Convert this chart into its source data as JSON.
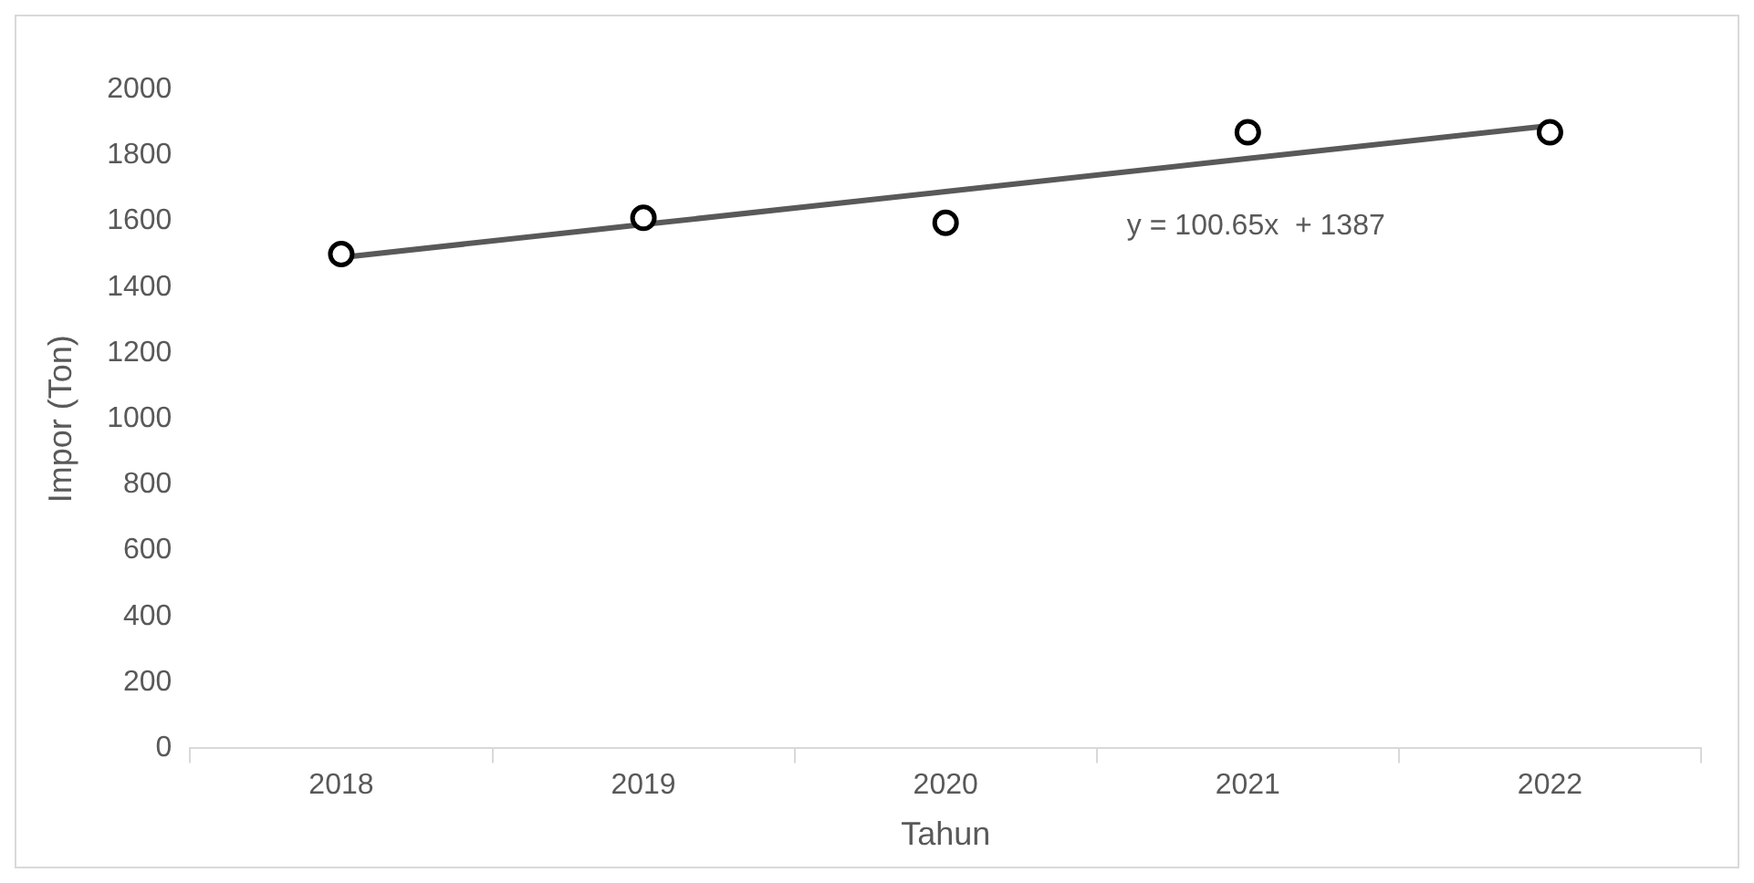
{
  "chart_data": {
    "type": "scatter",
    "xlabel": "Tahun",
    "ylabel": "Impor (Ton)",
    "categories": [
      "2018",
      "2019",
      "2020",
      "2021",
      "2022"
    ],
    "ylim": [
      0,
      2000
    ],
    "yticks": [
      0,
      200,
      400,
      600,
      800,
      1000,
      1200,
      1400,
      1600,
      1800,
      2000
    ],
    "grid": false,
    "legend": false,
    "marker": "circle",
    "series": [
      {
        "color": "#000000",
        "values": [
          1500,
          1610,
          1595,
          1870,
          1870
        ]
      },
      {
        "type": "line",
        "marker": "none",
        "color": "#595959",
        "values": [
          1490,
          1590,
          1690,
          1790,
          1890
        ]
      }
    ],
    "annotations": [
      "y = 100.65x  + 1387"
    ]
  }
}
